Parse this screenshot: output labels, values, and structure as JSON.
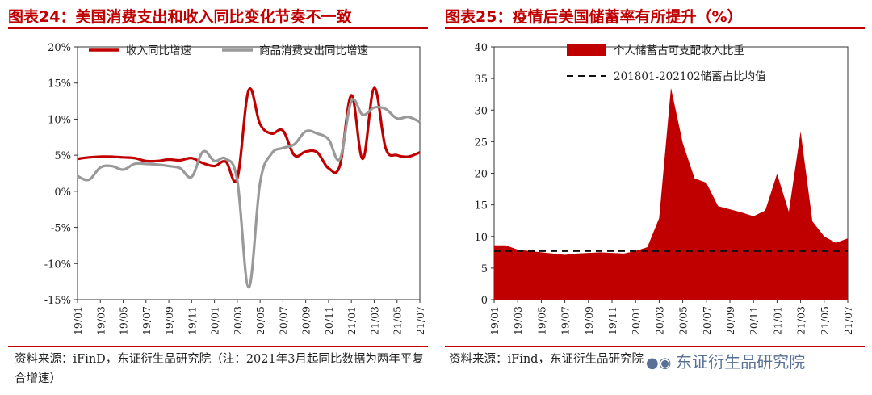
{
  "left_panel": {
    "title": "图表24：美国消费支出和收入同比变化节奏不一致",
    "source": "资料来源：iFinD，东证衍生品研究院（注：2021年3月起同比数据为两年平复合增速）"
  },
  "right_panel": {
    "title": "图表25：疫情后美国储蓄率有所提升（%）",
    "source": "资料来源：iFind，东证衍生品研究院"
  },
  "watermark": "东证衍生品研究院",
  "colors": {
    "red": "#c00000",
    "gray": "#999999",
    "dashed": "#111111",
    "title": "#c00000"
  },
  "chart_data": [
    {
      "type": "line",
      "title": "图表24：美国消费支出和收入同比变化节奏不一致",
      "x": [
        "19/01",
        "19/02",
        "19/03",
        "19/04",
        "19/05",
        "19/06",
        "19/07",
        "19/08",
        "19/09",
        "19/10",
        "19/11",
        "19/12",
        "20/01",
        "20/02",
        "20/03",
        "20/04",
        "20/05",
        "20/06",
        "20/07",
        "20/08",
        "20/09",
        "20/10",
        "20/11",
        "20/12",
        "21/01",
        "21/02",
        "21/03",
        "21/04",
        "21/05",
        "21/06",
        "21/07"
      ],
      "tick_labels": [
        "19/01",
        "19/03",
        "19/05",
        "19/07",
        "19/09",
        "19/11",
        "20/01",
        "20/03",
        "20/05",
        "20/07",
        "20/09",
        "20/11",
        "21/01",
        "21/03",
        "21/05",
        "21/07"
      ],
      "yticks": [
        "20%",
        "15%",
        "10%",
        "5%",
        "0%",
        "-5%",
        "-10%",
        "-15%"
      ],
      "ylim": [
        -15,
        20
      ],
      "legend_position": "top",
      "series": [
        {
          "name": "收入同比增速",
          "color": "#c00000",
          "values": [
            4.5,
            4.7,
            4.8,
            4.8,
            4.7,
            4.6,
            4.2,
            4.2,
            4.4,
            4.3,
            4.6,
            3.9,
            3.5,
            4.1,
            1.8,
            14.0,
            9.3,
            8.0,
            8.4,
            5.0,
            5.5,
            5.4,
            3.2,
            3.6,
            13.3,
            4.5,
            14.3,
            6.0,
            5.0,
            4.8,
            5.4
          ]
        },
        {
          "name": "商品消费支出同比增速",
          "color": "#999999",
          "values": [
            2.1,
            1.6,
            3.3,
            3.5,
            3.0,
            3.8,
            3.8,
            3.7,
            3.5,
            3.2,
            2.0,
            5.5,
            4.2,
            4.5,
            1.5,
            -13.3,
            1.2,
            5.2,
            6.0,
            6.5,
            8.3,
            8.0,
            7.2,
            4.5,
            12.5,
            10.6,
            11.6,
            11.4,
            10.1,
            10.3,
            9.6
          ]
        }
      ]
    },
    {
      "type": "area",
      "title": "图表25：疫情后美国储蓄率有所提升（%）",
      "x": [
        "19/01",
        "19/02",
        "19/03",
        "19/04",
        "19/05",
        "19/06",
        "19/07",
        "19/08",
        "19/09",
        "19/10",
        "19/11",
        "19/12",
        "20/01",
        "20/02",
        "20/03",
        "20/04",
        "20/05",
        "20/06",
        "20/07",
        "20/08",
        "20/09",
        "20/10",
        "20/11",
        "20/12",
        "21/01",
        "21/02",
        "21/03",
        "21/04",
        "21/05",
        "21/06",
        "21/07"
      ],
      "tick_labels": [
        "19/01",
        "19/03",
        "19/05",
        "19/07",
        "19/09",
        "19/11",
        "20/01",
        "20/03",
        "20/05",
        "20/07",
        "20/09",
        "20/11",
        "21/01",
        "21/03",
        "21/05",
        "21/07"
      ],
      "yticks": [
        "40",
        "35",
        "30",
        "25",
        "20",
        "15",
        "10",
        "5",
        "0"
      ],
      "ylim": [
        0,
        40
      ],
      "legend_position": "top",
      "series": [
        {
          "name": "个人储蓄占可支配收入比重",
          "color": "#c00000",
          "values": [
            8.6,
            8.6,
            7.9,
            7.7,
            7.5,
            7.3,
            7.1,
            7.3,
            7.4,
            7.5,
            7.4,
            7.3,
            7.7,
            8.3,
            12.9,
            33.5,
            24.8,
            19.2,
            18.5,
            14.8,
            14.3,
            13.8,
            13.2,
            14.1,
            19.9,
            13.9,
            26.6,
            12.4,
            10.0,
            9.0,
            9.7
          ]
        },
        {
          "name": "201801-202102储蓄占比均值",
          "style": "dashed",
          "color": "#111111",
          "value": 7.7
        }
      ]
    }
  ]
}
